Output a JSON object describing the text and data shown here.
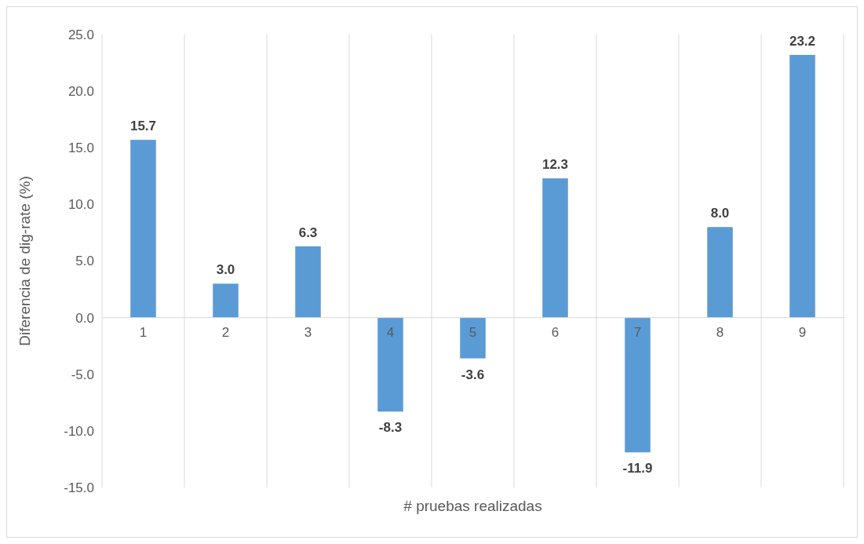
{
  "chart_data": {
    "type": "bar",
    "xlabel": "# pruebas realizadas",
    "ylabel": "Diferencia de dig-rate (%)",
    "categories": [
      "1",
      "2",
      "3",
      "4",
      "5",
      "6",
      "7",
      "8",
      "9"
    ],
    "values": [
      15.7,
      3.0,
      6.3,
      -8.3,
      -3.6,
      12.3,
      -11.9,
      8.0,
      23.2
    ],
    "value_labels": [
      "15.7",
      "3.0",
      "6.3",
      "-8.3",
      "-3.6",
      "12.3",
      "-11.9",
      "8.0",
      "23.2"
    ],
    "color": "#5b9bd5",
    "ylim": [
      -15,
      25
    ],
    "yticks": [
      {
        "value": -15,
        "label": "-15.0"
      },
      {
        "value": -10,
        "label": "-10.0"
      },
      {
        "value": -5,
        "label": "-5.0"
      },
      {
        "value": 0,
        "label": "0.0"
      },
      {
        "value": 5,
        "label": "5.0"
      },
      {
        "value": 10,
        "label": "10.0"
      },
      {
        "value": 15,
        "label": "15.0"
      },
      {
        "value": 20,
        "label": "20.0"
      },
      {
        "value": 25,
        "label": "25.0"
      }
    ],
    "grid": "x"
  }
}
